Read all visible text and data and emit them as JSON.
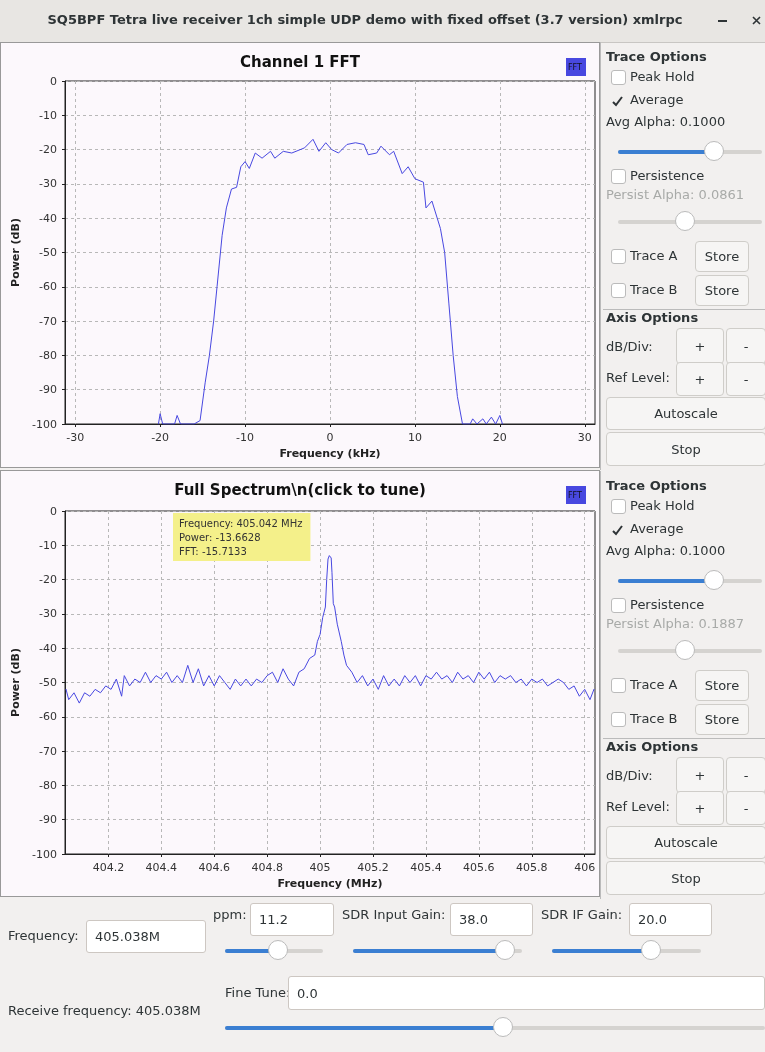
{
  "chart_data": [
    {
      "type": "other",
      "title": "SQ5BPF Tetra live receiver 1ch simple UDP demo with fixed offset (3.7 version) xmlrpc"
    },
    {
      "type": "line",
      "title": "Channel 1 FFT",
      "xlabel": "Frequency (kHz)",
      "ylabel": "Power (dB)",
      "legend": "top right",
      "grid": true,
      "marker": "none",
      "xlim": [
        -31.2,
        31.2
      ],
      "xticks": [
        -30,
        -20,
        -10,
        0,
        10,
        20,
        30
      ],
      "ylim": [
        -100,
        0
      ],
      "yticks": [
        -100,
        -90,
        -80,
        -70,
        -60,
        -50,
        -40,
        -30,
        -20,
        -10,
        0
      ],
      "x": [
        -20.2,
        -20,
        -19.7,
        -18.3,
        -18,
        -17.6,
        -16,
        -15.3,
        -14.7,
        -14.2,
        -13.7,
        -13.3,
        -12.7,
        -12.2,
        -11.6,
        -11,
        -10.5,
        -10,
        -9.5,
        -8.8,
        -8,
        -7,
        -6.5,
        -5.5,
        -4.5,
        -3,
        -2,
        -1.3,
        -0.5,
        0.2,
        1,
        2,
        3,
        4,
        4.5,
        5.5,
        6,
        7,
        7.5,
        8.5,
        9.2,
        10,
        11,
        11.3,
        12,
        13,
        13.5,
        14,
        14.5,
        15,
        15.6,
        16.5,
        16.8,
        17.3,
        18,
        18.4,
        19,
        19.5,
        20,
        20.3
      ],
      "series": [
        {
          "name": "FFT",
          "color": "#4848e0",
          "values": [
            -100,
            -97,
            -100,
            -100,
            -97.5,
            -100,
            -100,
            -99,
            -88,
            -80,
            -70,
            -60,
            -45,
            -37,
            -31.5,
            -31,
            -25,
            -23.5,
            -25.5,
            -21,
            -22.5,
            -20.5,
            -22.5,
            -20.5,
            -21,
            -19.5,
            -17,
            -20.5,
            -18,
            -20,
            -21,
            -18.5,
            -18,
            -18.5,
            -21.5,
            -21,
            -19,
            -21.5,
            -20.5,
            -27,
            -25,
            -28.5,
            -29.5,
            -37,
            -35,
            -43,
            -50,
            -65,
            -80,
            -92,
            -100,
            -100,
            -98.5,
            -100,
            -98.5,
            -100,
            -98,
            -100,
            -97.5,
            -100
          ]
        }
      ]
    },
    {
      "type": "other",
      "annotations": [
        "Trace Options",
        "Peak Hold",
        "Average",
        "Avg Alpha: 0.1000",
        "Persistence",
        "Persist Alpha: 0.0861",
        "Trace A",
        "Store",
        "Trace B",
        "Store",
        "Axis Options",
        "dB/Div:",
        "+",
        "-",
        "Ref Level:",
        "+",
        "-",
        "Autoscale",
        "Stop"
      ]
    },
    {
      "type": "line",
      "title": "Full Spectrum\\n(click to tune)",
      "xlabel": "Frequency (MHz)",
      "ylabel": "Power (dB)",
      "legend": "top right",
      "grid": true,
      "marker": "none",
      "xlim": [
        404.036,
        406.039
      ],
      "xticks": [
        404.2,
        404.4,
        404.6,
        404.8,
        405,
        405.2,
        405.4,
        405.6,
        405.8,
        406
      ],
      "ylim": [
        -100,
        0
      ],
      "yticks": [
        -100,
        -90,
        -80,
        -70,
        -60,
        -50,
        -40,
        -30,
        -20,
        -10,
        0
      ],
      "annotations": [
        "Frequency: 405.042 MHz\nPower: -13.6628\nFFT: -15.7133"
      ],
      "x": [
        404.04,
        404.05,
        404.07,
        404.09,
        404.11,
        404.13,
        404.15,
        404.17,
        404.19,
        404.21,
        404.23,
        404.25,
        404.26,
        404.28,
        404.3,
        404.32,
        404.34,
        404.36,
        404.38,
        404.4,
        404.42,
        404.44,
        404.46,
        404.48,
        404.5,
        404.52,
        404.54,
        404.56,
        404.58,
        404.6,
        404.62,
        404.64,
        404.66,
        404.68,
        404.7,
        404.72,
        404.74,
        404.76,
        404.78,
        404.8,
        404.82,
        404.84,
        404.86,
        404.88,
        404.9,
        404.92,
        404.94,
        404.96,
        404.98,
        404.99,
        405,
        405.01,
        405.02,
        405.025,
        405.03,
        405.035,
        405.042,
        405.045,
        405.05,
        405.055,
        405.065,
        405.08,
        405.09,
        405.1,
        405.12,
        405.14,
        405.16,
        405.18,
        405.2,
        405.22,
        405.24,
        405.26,
        405.28,
        405.3,
        405.32,
        405.34,
        405.36,
        405.38,
        405.4,
        405.42,
        405.44,
        405.46,
        405.48,
        405.5,
        405.52,
        405.54,
        405.56,
        405.58,
        405.6,
        405.62,
        405.64,
        405.66,
        405.68,
        405.7,
        405.72,
        405.74,
        405.76,
        405.78,
        405.8,
        405.82,
        405.84,
        405.86,
        405.88,
        405.9,
        405.92,
        405.94,
        405.96,
        405.98,
        406,
        406.02,
        406.035
      ],
      "series": [
        {
          "name": "FFT",
          "color": "#4848e0",
          "values": [
            -52,
            -55,
            -53,
            -56,
            -53,
            -54,
            -52,
            -53,
            -51,
            -52,
            -49,
            -54,
            -48,
            -51,
            -49,
            -50,
            -47,
            -50,
            -48,
            -49,
            -47,
            -50,
            -48,
            -50,
            -45,
            -50,
            -46,
            -51,
            -48,
            -51,
            -48,
            -50,
            -52,
            -49,
            -51,
            -49,
            -51,
            -49,
            -50,
            -48,
            -47,
            -50,
            -46,
            -49,
            -51,
            -47,
            -46,
            -43,
            -42,
            -38,
            -36,
            -31,
            -28,
            -20,
            -14,
            -13,
            -13.7,
            -18,
            -27,
            -28,
            -33,
            -38,
            -42,
            -45,
            -47,
            -50,
            -48,
            -51,
            -49,
            -52,
            -48,
            -51,
            -49,
            -51,
            -48,
            -50,
            -48,
            -51,
            -48,
            -49,
            -47,
            -49,
            -48,
            -50,
            -47,
            -49,
            -48,
            -50,
            -47,
            -49,
            -47,
            -50,
            -48,
            -49,
            -48,
            -50,
            -49,
            -51,
            -49,
            -50,
            -49,
            -51,
            -50,
            -49,
            -50,
            -52,
            -51,
            -54,
            -52,
            -55,
            -52
          ]
        }
      ]
    },
    {
      "type": "other",
      "annotations": [
        "Trace Options",
        "Peak Hold",
        "Average",
        "Avg Alpha: 0.1000",
        "Persistence",
        "Persist Alpha: 0.1887",
        "Trace A",
        "Store",
        "Trace B",
        "Store",
        "Axis Options",
        "dB/Div:",
        "+",
        "-",
        "Ref Level:",
        "+",
        "-",
        "Autoscale",
        "Stop"
      ]
    },
    {
      "type": "other",
      "annotations": [
        "Frequency:",
        "405.038M",
        "ppm:",
        "11.2",
        "SDR Input Gain:",
        "38.0",
        "SDR IF Gain:",
        "20.0",
        "Receive frequency: 405.038M",
        "Fine Tune:",
        "0.0"
      ]
    }
  ]
}
